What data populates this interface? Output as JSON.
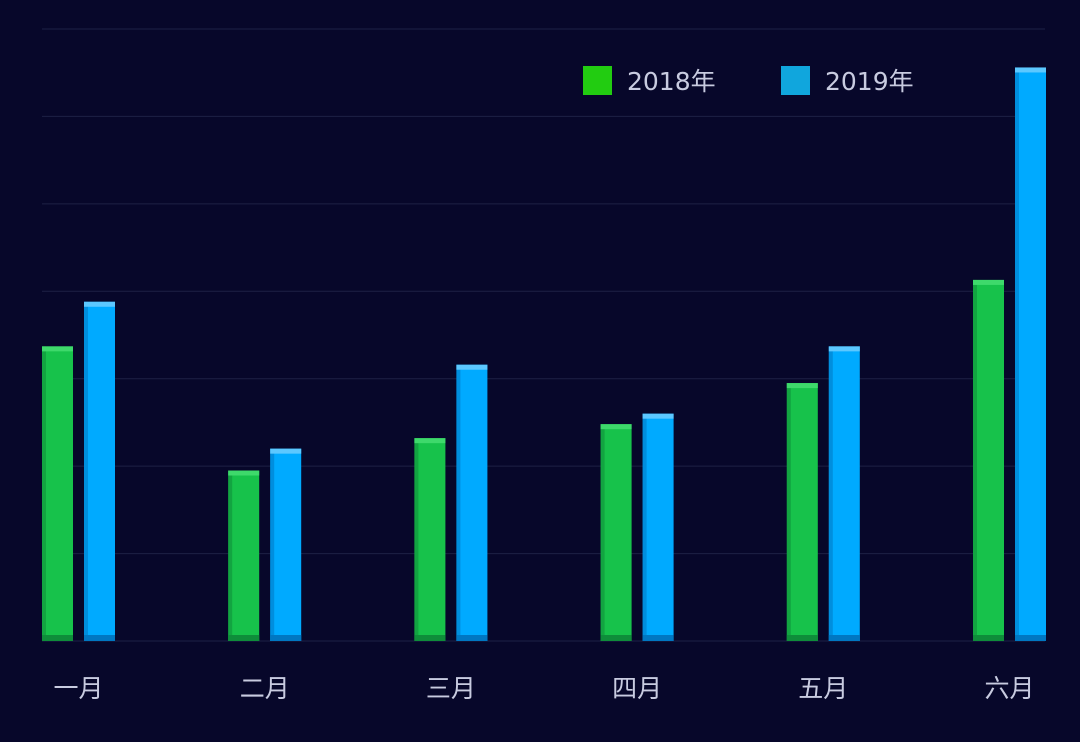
{
  "chart_data": {
    "type": "bar",
    "categories": [
      "一月",
      "二月",
      "三月",
      "四月",
      "五月",
      "六月"
    ],
    "series": [
      {
        "name": "2018年",
        "values": [
          337,
          195,
          232,
          248,
          295,
          413
        ],
        "color": "#17c24b"
      },
      {
        "name": "2019年",
        "values": [
          388,
          220,
          316,
          260,
          337,
          656
        ],
        "color": "#00aaff"
      }
    ],
    "ylim": [
      0,
      700
    ],
    "grid": true,
    "legend_position": "top-right",
    "legend_swatch_colors": [
      "#22cc11",
      "#10a6dd"
    ],
    "background": "#07072a",
    "gridline_color": "#1e2145"
  }
}
